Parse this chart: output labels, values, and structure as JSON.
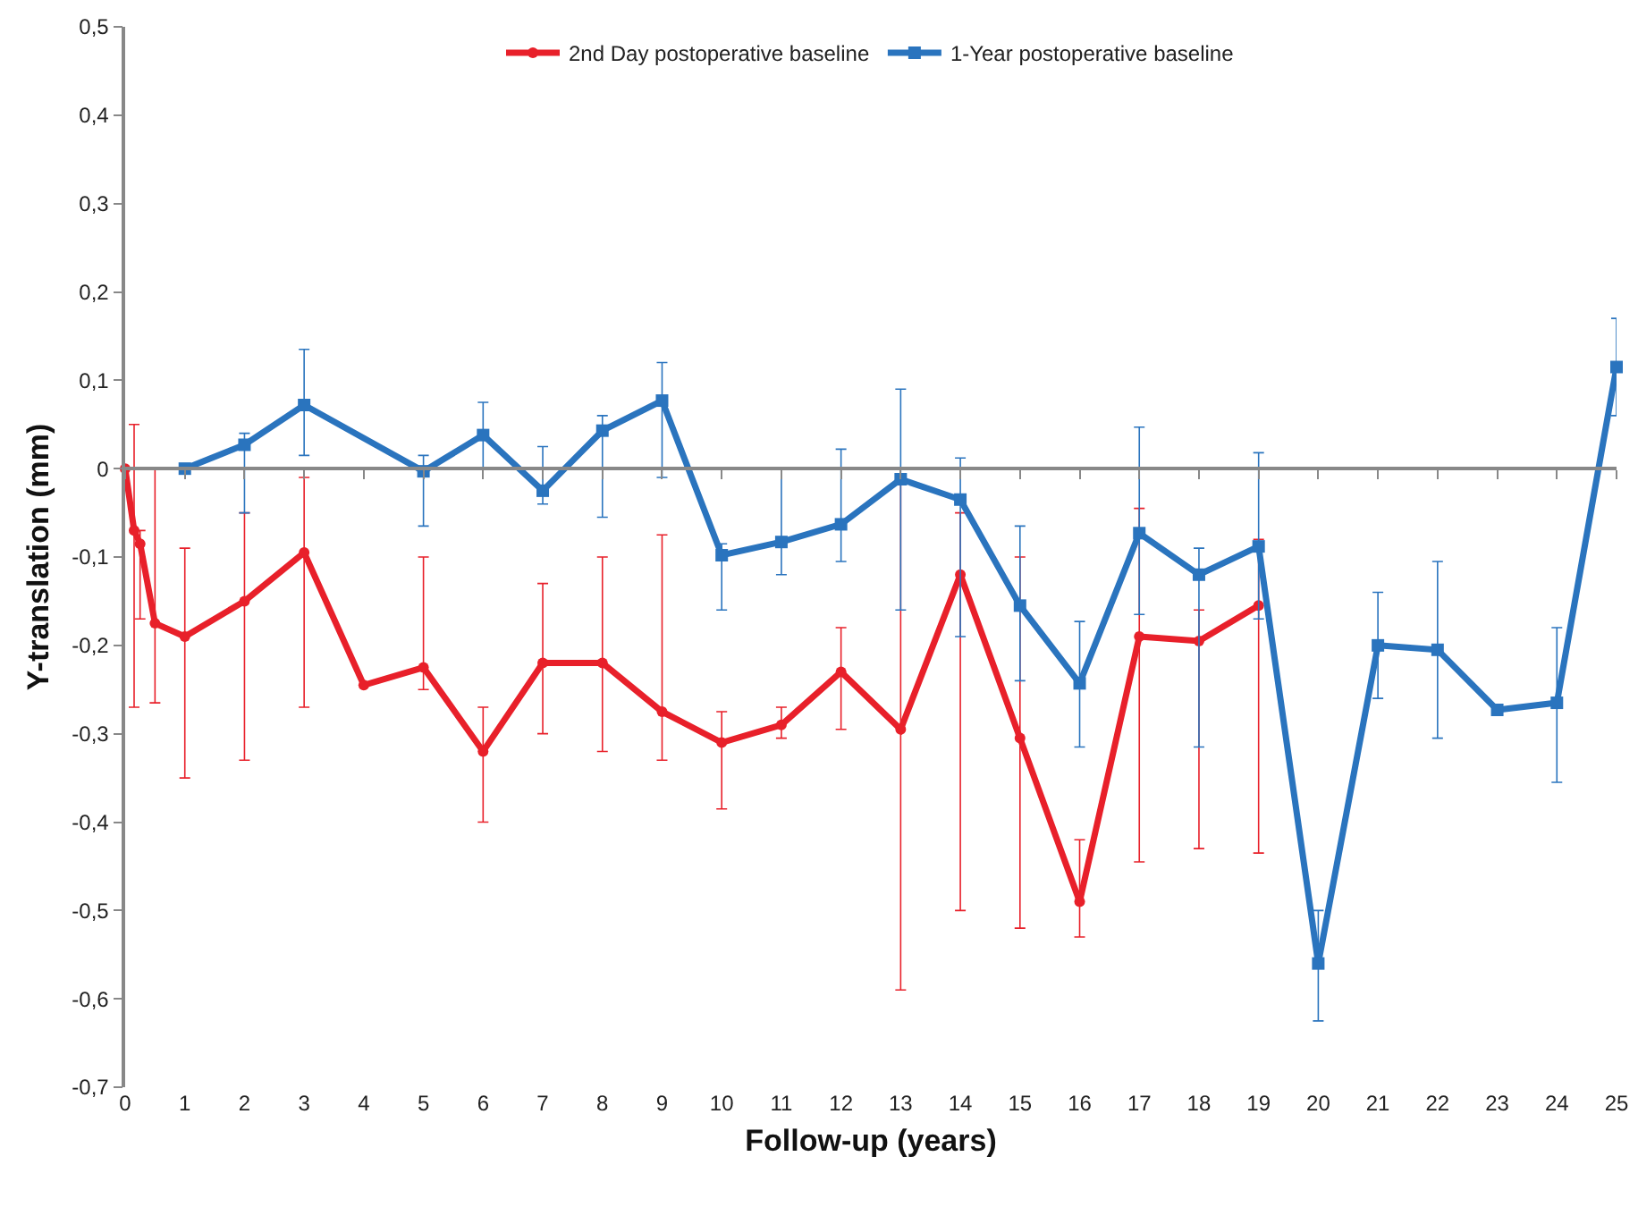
{
  "chart_data": {
    "type": "line",
    "xlabel": "Follow-up (years)",
    "ylabel": "Y-translation (mm)",
    "xlim": [
      0,
      25
    ],
    "xticks": [
      0,
      1,
      2,
      3,
      4,
      5,
      6,
      7,
      8,
      9,
      10,
      11,
      12,
      13,
      14,
      15,
      16,
      17,
      18,
      19,
      20,
      21,
      22,
      23,
      24,
      25
    ],
    "ylim": [
      -0.7,
      0.5
    ],
    "yticks": [
      {
        "value": -0.7,
        "label": "-0,7"
      },
      {
        "value": -0.6,
        "label": "-0,6"
      },
      {
        "value": -0.5,
        "label": "-0,5"
      },
      {
        "value": -0.4,
        "label": "-0,4"
      },
      {
        "value": -0.3,
        "label": "-0,3"
      },
      {
        "value": -0.2,
        "label": "-0,2"
      },
      {
        "value": -0.1,
        "label": "-0,1"
      },
      {
        "value": 0,
        "label": "0"
      },
      {
        "value": 0.1,
        "label": "0,1"
      },
      {
        "value": 0.2,
        "label": "0,2"
      },
      {
        "value": 0.3,
        "label": "0,3"
      },
      {
        "value": 0.4,
        "label": "0,4"
      },
      {
        "value": 0.5,
        "label": "0,5"
      }
    ],
    "legend": "top",
    "series": [
      {
        "name": "2nd Day postoperative baseline",
        "color": "#e8202a",
        "marker": "circle",
        "x": [
          0,
          0.15,
          0.25,
          0.5,
          1,
          2,
          3,
          4,
          5,
          6,
          7,
          8,
          9,
          10,
          11,
          12,
          13,
          14,
          15,
          16,
          17,
          18,
          19
        ],
        "values": [
          0,
          -0.07,
          -0.085,
          -0.175,
          -0.19,
          -0.15,
          -0.095,
          -0.245,
          -0.225,
          -0.32,
          -0.22,
          -0.22,
          -0.275,
          -0.31,
          -0.29,
          -0.23,
          -0.295,
          -0.12,
          -0.305,
          -0.49,
          -0.19,
          -0.195,
          -0.155
        ],
        "errors": [
          null,
          [
            -0.27,
            0.05
          ],
          [
            -0.17,
            -0.07
          ],
          [
            -0.265,
            0
          ],
          [
            -0.35,
            -0.09
          ],
          [
            -0.33,
            -0.05
          ],
          [
            -0.27,
            -0.01
          ],
          null,
          [
            -0.25,
            -0.1
          ],
          [
            -0.4,
            -0.27
          ],
          [
            -0.3,
            -0.13
          ],
          [
            -0.32,
            -0.1
          ],
          [
            -0.33,
            -0.075
          ],
          [
            -0.385,
            -0.275
          ],
          [
            -0.305,
            -0.27
          ],
          [
            -0.295,
            -0.18
          ],
          [
            -0.59,
            -0.01
          ],
          [
            -0.5,
            -0.05
          ],
          [
            -0.52,
            -0.1
          ],
          [
            -0.53,
            -0.42
          ],
          [
            -0.445,
            -0.045
          ],
          [
            -0.43,
            -0.16
          ],
          [
            -0.435,
            -0.08
          ]
        ]
      },
      {
        "name": "1-Year postoperative baseline",
        "color": "#2a74be",
        "marker": "square",
        "x": [
          1,
          2,
          3,
          5,
          6,
          7,
          8,
          9,
          10,
          11,
          12,
          13,
          14,
          15,
          16,
          17,
          18,
          19,
          20,
          21,
          22,
          23,
          24,
          25
        ],
        "values": [
          0,
          0.027,
          0.072,
          -0.003,
          0.038,
          -0.025,
          0.043,
          0.077,
          -0.098,
          -0.083,
          -0.063,
          -0.012,
          -0.035,
          -0.155,
          -0.243,
          -0.073,
          -0.12,
          -0.088,
          -0.56,
          -0.2,
          -0.205,
          -0.273,
          -0.265,
          0.115
        ],
        "errors": [
          null,
          [
            -0.05,
            0.04
          ],
          [
            0.015,
            0.135
          ],
          [
            -0.065,
            0.015
          ],
          [
            0,
            0.075
          ],
          [
            -0.04,
            0.025
          ],
          [
            -0.055,
            0.06
          ],
          [
            -0.01,
            0.12
          ],
          [
            -0.16,
            -0.085
          ],
          [
            -0.12,
            0
          ],
          [
            -0.105,
            0.022
          ],
          [
            -0.16,
            0.09
          ],
          [
            -0.19,
            0.012
          ],
          [
            -0.24,
            -0.065
          ],
          [
            -0.315,
            -0.173
          ],
          [
            -0.165,
            0.047
          ],
          [
            -0.315,
            -0.09
          ],
          [
            -0.17,
            0.018
          ],
          [
            -0.625,
            -0.5
          ],
          [
            -0.26,
            -0.14
          ],
          [
            -0.305,
            -0.105
          ],
          null,
          [
            -0.355,
            -0.18
          ],
          [
            0.06,
            0.17
          ]
        ]
      }
    ]
  }
}
